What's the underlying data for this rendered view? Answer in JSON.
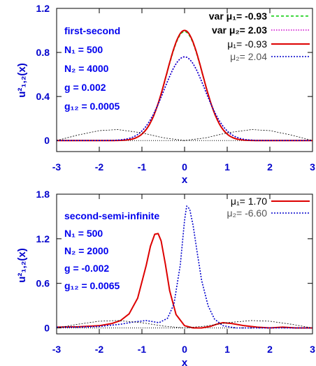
{
  "chart_data": [
    {
      "type": "line",
      "xlabel": "x",
      "ylabel": "u²₁,₂(x)",
      "xlim": [
        -3,
        3
      ],
      "ylim": [
        -0.1,
        1.2
      ],
      "xticks": [
        "-3",
        "-2",
        "-1",
        "0",
        "1",
        "2",
        "3"
      ],
      "yticks": [
        "0",
        "0.4",
        "0.8",
        "1.2"
      ],
      "annotations": [
        "first-second",
        "N₁ = 500",
        "N₂ = 4000",
        "g = 0.002",
        "g₁₂ = 0.0005"
      ],
      "series": [
        {
          "name": "var μ₁= -0.93",
          "color": "#00cc00",
          "style": "dashed",
          "peak": 0.99,
          "sigma": 0.42
        },
        {
          "name": "var μ₂= 2.03",
          "color": "#cc00cc",
          "style": "dotted",
          "peak": 0.76,
          "sigma": 0.48
        },
        {
          "name": "μ₁= -0.93",
          "color": "#dd0000",
          "style": "solid",
          "peak": 1.0,
          "sigma": 0.42
        },
        {
          "name": "μ₂= 2.04",
          "color": "#0000cc",
          "style": "dotted",
          "peak": 0.76,
          "sigma": 0.48
        },
        {
          "name": "",
          "color": "#000000",
          "style": "dotted",
          "x": [
            -3,
            -2.5,
            -2,
            -1.57,
            -1,
            -0.5,
            0,
            0.5,
            1,
            1.57,
            2,
            2.5,
            3
          ],
          "y": [
            0.0,
            0.05,
            0.09,
            0.1,
            0.07,
            0.025,
            0.0,
            0.025,
            0.07,
            0.1,
            0.09,
            0.05,
            0.0
          ]
        }
      ]
    },
    {
      "type": "line",
      "xlabel": "x",
      "ylabel": "u²₁,₂(x)",
      "xlim": [
        -3,
        3
      ],
      "ylim": [
        -0.08,
        1.8
      ],
      "xticks": [
        "-3",
        "-2",
        "-1",
        "0",
        "1",
        "2",
        "3"
      ],
      "yticks": [
        "0",
        "0.6",
        "1.2",
        "1.8"
      ],
      "annotations": [
        "second-semi-infinite",
        "N₁ = 500",
        "N₂ = 2000",
        "g = -0.002",
        "g₁₂ = 0.0065"
      ],
      "series": [
        {
          "name": "μ₁= 1.70",
          "color": "#dd0000",
          "style": "solid",
          "x": [
            -3,
            -2.5,
            -2,
            -1.7,
            -1.5,
            -1.3,
            -1.1,
            -0.9,
            -0.8,
            -0.7,
            -0.62,
            -0.55,
            -0.45,
            -0.35,
            -0.2,
            0,
            0.2,
            0.4,
            0.6,
            0.75,
            0.9,
            1.1,
            1.4,
            1.7,
            2,
            2.3,
            2.6,
            3
          ],
          "y": [
            0.01,
            0.015,
            0.03,
            0.06,
            0.1,
            0.19,
            0.4,
            0.84,
            1.1,
            1.26,
            1.27,
            1.17,
            0.86,
            0.5,
            0.18,
            0.03,
            0.0,
            0.0,
            0.02,
            0.05,
            0.07,
            0.06,
            0.03,
            0.01,
            0.0,
            0.01,
            0.0,
            0.0
          ]
        },
        {
          "name": "μ₂= -6.60",
          "color": "#0000cc",
          "style": "dotted",
          "x": [
            -3,
            -2.5,
            -2,
            -1.5,
            -1.2,
            -0.9,
            -0.6,
            -0.4,
            -0.25,
            -0.1,
            0,
            0.05,
            0.12,
            0.2,
            0.3,
            0.4,
            0.55,
            0.7,
            0.9,
            1.2,
            1.5,
            2,
            2.5,
            3
          ],
          "y": [
            0.01,
            0.01,
            0.02,
            0.05,
            0.08,
            0.1,
            0.07,
            0.13,
            0.32,
            0.85,
            1.45,
            1.64,
            1.6,
            1.38,
            1.0,
            0.64,
            0.3,
            0.12,
            0.03,
            0.0,
            0.0,
            0.0,
            0.0,
            0.0
          ]
        },
        {
          "name": "",
          "color": "#000000",
          "style": "dotted",
          "x": [
            -3,
            -2.5,
            -2,
            -1.57,
            -1,
            -0.5,
            0,
            0.5,
            1,
            1.57,
            2,
            2.5,
            3
          ],
          "y": [
            0.0,
            0.05,
            0.09,
            0.1,
            0.07,
            0.025,
            0.0,
            0.025,
            0.07,
            0.1,
            0.09,
            0.05,
            0.0
          ]
        }
      ]
    }
  ]
}
